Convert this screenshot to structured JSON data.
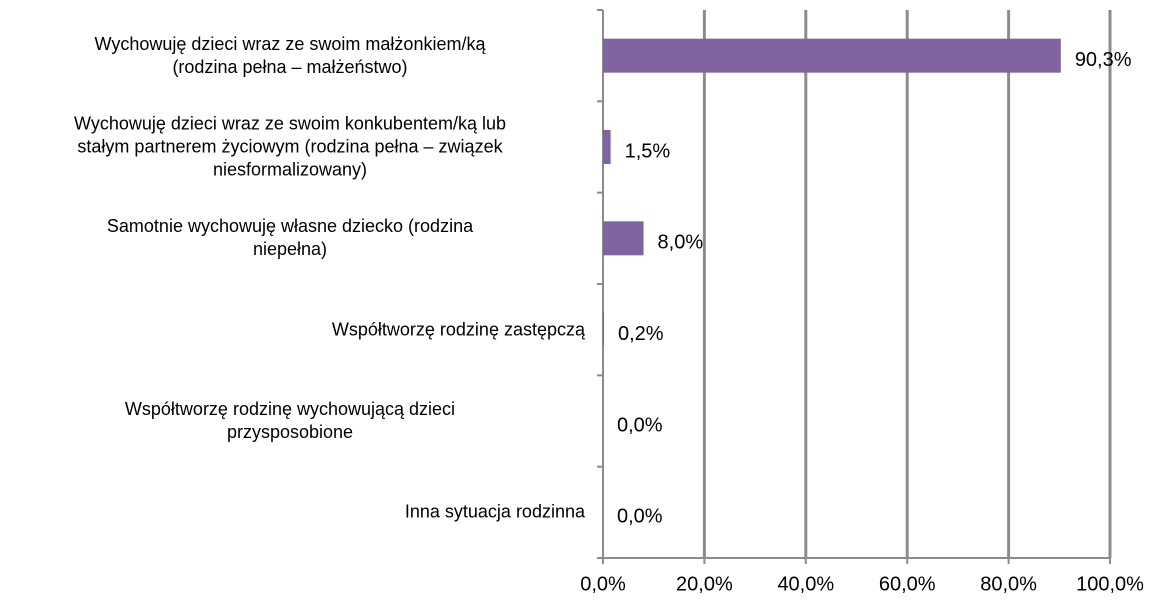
{
  "chart_data": {
    "type": "bar",
    "orientation": "horizontal",
    "categories": [
      "Wychowuję dzieci wraz ze swoim małżonkiem/ką\n(rodzina pełna – małżeństwo)",
      "Wychowuję dzieci wraz ze swoim konkubentem/ką lub\nstałym partnerem życiowym (rodzina pełna – związek\nniesformalizowany)",
      "Samotnie wychowuję własne dziecko (rodzina\nniepełna)",
      "Współtworzę rodzinę zastępczą",
      "Współtworzę rodzinę wychowującą dzieci\nprzysposobione",
      "Inna sytuacja rodzinna"
    ],
    "values": [
      90.3,
      1.5,
      8.0,
      0.2,
      0.0,
      0.0
    ],
    "value_labels": [
      "90,3%",
      "1,5%",
      "8,0%",
      "0,2%",
      "0,0%",
      "0,0%"
    ],
    "color": "#8064a2",
    "xlim": [
      0,
      100
    ],
    "xticks": [
      {
        "value": 0,
        "label": "0,0%"
      },
      {
        "value": 20,
        "label": "20,0%"
      },
      {
        "value": 40,
        "label": "40,0%"
      },
      {
        "value": 60,
        "label": "60,0%"
      },
      {
        "value": 80,
        "label": "80,0%"
      },
      {
        "value": 100,
        "label": "100,0%"
      }
    ],
    "grid": true
  }
}
